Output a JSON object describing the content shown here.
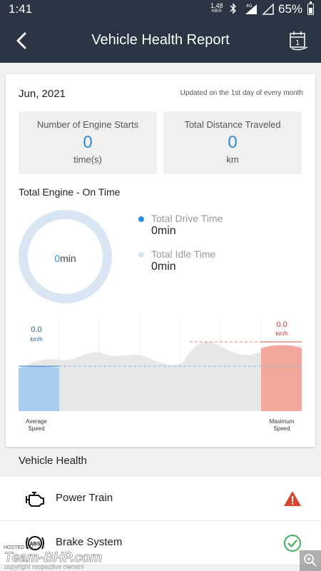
{
  "status_bar": {
    "time": "1:41",
    "net_speed_value": "1.48",
    "net_speed_unit": "KB/S",
    "network": "4G",
    "battery": "65%"
  },
  "header": {
    "title": "Vehicle Health Report",
    "calendar_day": "1"
  },
  "report": {
    "month": "Jun, 2021",
    "updated_note": "Updated on the 1st day of every month",
    "engine_starts": {
      "label": "Number of Engine Starts",
      "value": "0",
      "unit": "time(s)"
    },
    "distance": {
      "label": "Total Distance Traveled",
      "value": "0",
      "unit": "km"
    },
    "engine_on_time": {
      "title": "Total Engine - On Time",
      "total_value": "0",
      "total_unit": "min",
      "drive_label": "Total Drive Time",
      "drive_value": "0min",
      "idle_label": "Total Idle Time",
      "idle_value": "0min"
    }
  },
  "chart_data": {
    "type": "bar",
    "categories": [
      "Average Speed",
      "Maximum Speed"
    ],
    "values": [
      0.0,
      0.0
    ],
    "value_labels": [
      "0.0",
      "0.0"
    ],
    "unit": "km/h",
    "colors": {
      "average": "#a9cdf1",
      "maximum": "#f1a799",
      "background_wave": "#e7e7e7"
    }
  },
  "chart_labels": {
    "avg_value": "0.0",
    "avg_unit": "km/h",
    "avg_caption_1": "Average",
    "avg_caption_2": "Speed",
    "max_value": "0.0",
    "max_unit": "km/h",
    "max_caption_1": "Maximum",
    "max_caption_2": "Speed"
  },
  "vehicle_health": {
    "title": "Vehicle Health",
    "items": [
      {
        "label": "Power Train",
        "icon": "engine-icon",
        "status": "warning"
      },
      {
        "label": "Brake System",
        "icon": "abs-icon",
        "status": "ok"
      }
    ]
  },
  "watermark": {
    "hosted_on": "HOSTED ON :",
    "brand": "Team-BHP.com",
    "tagline": "copyright respective owners"
  },
  "colors": {
    "header_bg": "#2b3442",
    "accent_blue": "#2b8ddb",
    "ring": "#d8e6f4",
    "warning": "#d9432f",
    "ok": "#3cb35c"
  }
}
